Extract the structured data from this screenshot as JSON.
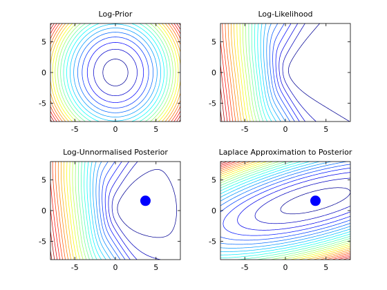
{
  "figure": {
    "background": "#ffffff"
  },
  "chart_data": [
    {
      "type": "contour",
      "title": "Log-Prior",
      "function": "log_prior",
      "xlim": [
        -8,
        8
      ],
      "ylim": [
        -8,
        8
      ],
      "xticks": [
        -5,
        0,
        5
      ],
      "yticks": [
        -5,
        0,
        5
      ],
      "levels": 20,
      "colormap": "jet",
      "grid": false,
      "has_mode_marker": false
    },
    {
      "type": "contour",
      "title": "Log-Likelihood",
      "function": "log_likelihood",
      "xlim": [
        -8,
        8
      ],
      "ylim": [
        -8,
        8
      ],
      "xticks": [
        -5,
        0,
        5
      ],
      "yticks": [
        -5,
        0,
        5
      ],
      "levels": 26,
      "colormap": "jet",
      "grid": false,
      "has_mode_marker": false
    },
    {
      "type": "contour",
      "title": "Log-Unnormalised Posterior",
      "function": "log_posterior",
      "xlim": [
        -8,
        8
      ],
      "ylim": [
        -8,
        8
      ],
      "xticks": [
        -5,
        0,
        5
      ],
      "yticks": [
        -5,
        0,
        5
      ],
      "levels": 26,
      "colormap": "jet",
      "grid": false,
      "has_mode_marker": true,
      "mode": {
        "x": 3.7,
        "y": 1.6
      }
    },
    {
      "type": "contour",
      "title": "Laplace Approximation to Posterior",
      "function": "laplace",
      "xlim": [
        -8,
        8
      ],
      "ylim": [
        -8,
        8
      ],
      "xticks": [
        -5,
        0,
        5
      ],
      "yticks": [
        -5,
        0,
        5
      ],
      "levels": 24,
      "colormap": "jet",
      "grid": false,
      "has_mode_marker": true,
      "mode": {
        "x": 3.7,
        "y": 1.6
      }
    }
  ],
  "marker_color": "#0000ff"
}
